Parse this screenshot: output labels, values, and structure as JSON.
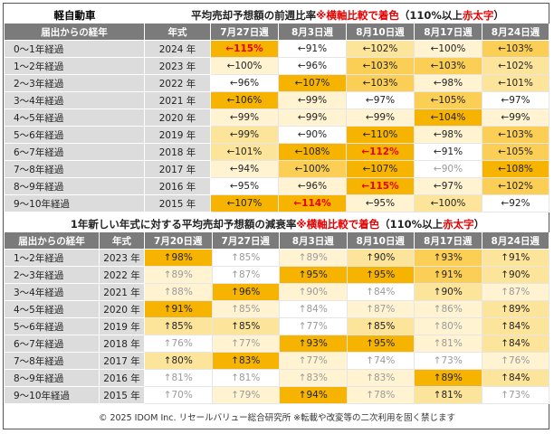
{
  "highlight_color": "#e60000",
  "top": {
    "label": "軽自動車",
    "title": [
      {
        "text": "平均売却予想額の前週比率 ",
        "color": "#222222"
      },
      {
        "text": "※横軸比較で着色",
        "color": "#e60000"
      },
      {
        "text": "（110%以上 ",
        "color": "#222222"
      },
      {
        "text": "赤太字",
        "color": "#e60000"
      },
      {
        "text": "）",
        "color": "#222222"
      }
    ],
    "headers": [
      "届出からの経年",
      "年式",
      "7月27日週",
      "8月3日週",
      "8月10日週",
      "8月17日週",
      "8月24日週"
    ],
    "rows": [
      {
        "age": "0～1年経過",
        "year": "2024 年",
        "cells": [
          "←115%",
          "←91%",
          "←102%",
          "←100%",
          "←103%"
        ],
        "bg": [
          "#f6b400",
          "#ffffff",
          "#fde49b",
          "#fff3d2",
          "#fbcf55"
        ],
        "fg": [
          "#e60000",
          "#222222",
          "#222222",
          "#222222",
          "#222222"
        ]
      },
      {
        "age": "1～2年経過",
        "year": "2023 年",
        "cells": [
          "←100%",
          "←96%",
          "←103%",
          "←103%",
          "←102%"
        ],
        "bg": [
          "#fff3d2",
          "#ffffff",
          "#fbcf55",
          "#fbcf55",
          "#fde49b"
        ],
        "fg": [
          "#222222",
          "#222222",
          "#222222",
          "#222222",
          "#222222"
        ]
      },
      {
        "age": "2～3年経過",
        "year": "2022 年",
        "cells": [
          "←96%",
          "←107%",
          "←103%",
          "←98%",
          "←101%"
        ],
        "bg": [
          "#ffffff",
          "#f6b400",
          "#fbcf55",
          "#fff3d2",
          "#fde49b"
        ],
        "fg": [
          "#222222",
          "#222222",
          "#222222",
          "#222222",
          "#222222"
        ]
      },
      {
        "age": "3～4年経過",
        "year": "2021 年",
        "cells": [
          "←106%",
          "←99%",
          "←97%",
          "←105%",
          "←97%"
        ],
        "bg": [
          "#f6b400",
          "#fff3d2",
          "#ffffff",
          "#fbcf55",
          "#ffffff"
        ],
        "fg": [
          "#222222",
          "#222222",
          "#222222",
          "#222222",
          "#222222"
        ]
      },
      {
        "age": "4～5年経過",
        "year": "2020 年",
        "cells": [
          "←99%",
          "←99%",
          "←99%",
          "←104%",
          "←99%"
        ],
        "bg": [
          "#fff3d2",
          "#fff3d2",
          "#fff3d2",
          "#f6b400",
          "#fff3d2"
        ],
        "fg": [
          "#222222",
          "#222222",
          "#222222",
          "#222222",
          "#222222"
        ]
      },
      {
        "age": "5～6年経過",
        "year": "2019 年",
        "cells": [
          "←99%",
          "←90%",
          "←110%",
          "←98%",
          "←103%"
        ],
        "bg": [
          "#fde49b",
          "#ffffff",
          "#f6b400",
          "#fff3d2",
          "#fbcf55"
        ],
        "fg": [
          "#222222",
          "#222222",
          "#222222",
          "#222222",
          "#222222"
        ]
      },
      {
        "age": "6～7年経過",
        "year": "2018 年",
        "cells": [
          "←101%",
          "←108%",
          "←112%",
          "←91%",
          "←105%"
        ],
        "bg": [
          "#fde49b",
          "#f6b400",
          "#f6b400",
          "#ffffff",
          "#fbcf55"
        ],
        "fg": [
          "#222222",
          "#222222",
          "#e60000",
          "#222222",
          "#222222"
        ]
      },
      {
        "age": "7～8年経過",
        "year": "2017 年",
        "cells": [
          "←94%",
          "←100%",
          "←107%",
          "←90%",
          "←108%"
        ],
        "bg": [
          "#fff3d2",
          "#fbcf55",
          "#f6b400",
          "#ffffff",
          "#f6b400"
        ],
        "fg": [
          "#222222",
          "#222222",
          "#222222",
          "#9a9a9a",
          "#222222"
        ]
      },
      {
        "age": "8～9年経過",
        "year": "2016 年",
        "cells": [
          "←95%",
          "←96%",
          "←115%",
          "←97%",
          "←102%"
        ],
        "bg": [
          "#ffffff",
          "#fff3d2",
          "#f6b400",
          "#fff3d2",
          "#fbcf55"
        ],
        "fg": [
          "#222222",
          "#222222",
          "#e60000",
          "#222222",
          "#222222"
        ]
      },
      {
        "age": "9～10年経過",
        "year": "2015 年",
        "cells": [
          "←107%",
          "←114%",
          "←95%",
          "←100%",
          "←92%"
        ],
        "bg": [
          "#f6b400",
          "#f6b400",
          "#fff3d2",
          "#fde49b",
          "#ffffff"
        ],
        "fg": [
          "#222222",
          "#e60000",
          "#222222",
          "#222222",
          "#222222"
        ]
      }
    ]
  },
  "bottom": {
    "title": [
      {
        "text": "1年新しい年式に対する平均売却予想額の減衰率 ",
        "color": "#222222"
      },
      {
        "text": "※横軸比較で着色",
        "color": "#e60000"
      },
      {
        "text": "（110%以上 ",
        "color": "#222222"
      },
      {
        "text": "赤太字",
        "color": "#e60000"
      },
      {
        "text": "）",
        "color": "#222222"
      }
    ],
    "headers": [
      "届出からの経年",
      "年式",
      "7月20日週",
      "7月27日週",
      "8月3日週",
      "8月10日週",
      "8月17日週",
      "8月24日週"
    ],
    "rows": [
      {
        "age": "1～2年経過",
        "year": "2023 年",
        "cells": [
          "↑98%",
          "↑85%",
          "↑89%",
          "↑90%",
          "↑93%",
          "↑91%"
        ],
        "bg": [
          "#f6b400",
          "#ffffff",
          "#fff3d2",
          "#fde49b",
          "#fbcf55",
          "#fde49b"
        ],
        "fg": [
          "#222222",
          "#9a9a9a",
          "#9a9a9a",
          "#222222",
          "#222222",
          "#222222"
        ]
      },
      {
        "age": "2～3年経過",
        "year": "2022 年",
        "cells": [
          "↑89%",
          "↑87%",
          "↑95%",
          "↑95%",
          "↑91%",
          "↑90%"
        ],
        "bg": [
          "#fff3d2",
          "#ffffff",
          "#f6b400",
          "#f6b400",
          "#fbcf55",
          "#fde49b"
        ],
        "fg": [
          "#9a9a9a",
          "#9a9a9a",
          "#222222",
          "#222222",
          "#222222",
          "#222222"
        ]
      },
      {
        "age": "3～4年経過",
        "year": "2021 年",
        "cells": [
          "↑88%",
          "↑96%",
          "↑90%",
          "↑84%",
          "↑90%",
          "↑87%"
        ],
        "bg": [
          "#fff3d2",
          "#f6b400",
          "#fff3d2",
          "#ffffff",
          "#fde49b",
          "#fff3d2"
        ],
        "fg": [
          "#9a9a9a",
          "#222222",
          "#9a9a9a",
          "#9a9a9a",
          "#222222",
          "#9a9a9a"
        ]
      },
      {
        "age": "4～5年経過",
        "year": "2020 年",
        "cells": [
          "↑91%",
          "↑85%",
          "↑84%",
          "↑87%",
          "↑86%",
          "↑89%"
        ],
        "bg": [
          "#f6b400",
          "#fff3d2",
          "#ffffff",
          "#fff3d2",
          "#fff3d2",
          "#fde49b"
        ],
        "fg": [
          "#222222",
          "#9a9a9a",
          "#9a9a9a",
          "#9a9a9a",
          "#9a9a9a",
          "#222222"
        ]
      },
      {
        "age": "5～6年経過",
        "year": "2019 年",
        "cells": [
          "↑85%",
          "↑85%",
          "↑77%",
          "↑85%",
          "↑80%",
          "↑84%"
        ],
        "bg": [
          "#fde49b",
          "#fde49b",
          "#ffffff",
          "#fde49b",
          "#fff3d2",
          "#fde49b"
        ],
        "fg": [
          "#222222",
          "#222222",
          "#9a9a9a",
          "#222222",
          "#9a9a9a",
          "#222222"
        ]
      },
      {
        "age": "6～7年経過",
        "year": "2018 年",
        "cells": [
          "↑76%",
          "↑77%",
          "↑93%",
          "↑95%",
          "↑81%",
          "↑84%"
        ],
        "bg": [
          "#ffffff",
          "#fff3d2",
          "#f6b400",
          "#f6b400",
          "#fff3d2",
          "#fde49b"
        ],
        "fg": [
          "#9a9a9a",
          "#9a9a9a",
          "#222222",
          "#222222",
          "#9a9a9a",
          "#222222"
        ]
      },
      {
        "age": "7～8年経過",
        "year": "2017 年",
        "cells": [
          "↑80%",
          "↑83%",
          "↑77%",
          "↑74%",
          "↑73%",
          "↑76%"
        ],
        "bg": [
          "#fde49b",
          "#f6b400",
          "#fff3d2",
          "#ffffff",
          "#ffffff",
          "#fff3d2"
        ],
        "fg": [
          "#222222",
          "#222222",
          "#9a9a9a",
          "#9a9a9a",
          "#9a9a9a",
          "#9a9a9a"
        ]
      },
      {
        "age": "8～9年経過",
        "year": "2016 年",
        "cells": [
          "↑81%",
          "↑81%",
          "↑83%",
          "↑83%",
          "↑89%",
          "↑84%"
        ],
        "bg": [
          "#ffffff",
          "#ffffff",
          "#fff3d2",
          "#fff3d2",
          "#f6b400",
          "#fde49b"
        ],
        "fg": [
          "#9a9a9a",
          "#9a9a9a",
          "#9a9a9a",
          "#9a9a9a",
          "#222222",
          "#222222"
        ]
      },
      {
        "age": "9～10年経過",
        "year": "2015 年",
        "cells": [
          "↑70%",
          "↑79%",
          "↑94%",
          "↑78%",
          "↑81%",
          "↑73%"
        ],
        "bg": [
          "#ffffff",
          "#fff3d2",
          "#f6b400",
          "#fff3d2",
          "#fde49b",
          "#ffffff"
        ],
        "fg": [
          "#9a9a9a",
          "#9a9a9a",
          "#222222",
          "#9a9a9a",
          "#222222",
          "#9a9a9a"
        ]
      }
    ]
  },
  "footer": "© 2025 IDOM Inc. リセールバリュー総合研究所 ※転載や改変等の二次利用を固く禁じます"
}
